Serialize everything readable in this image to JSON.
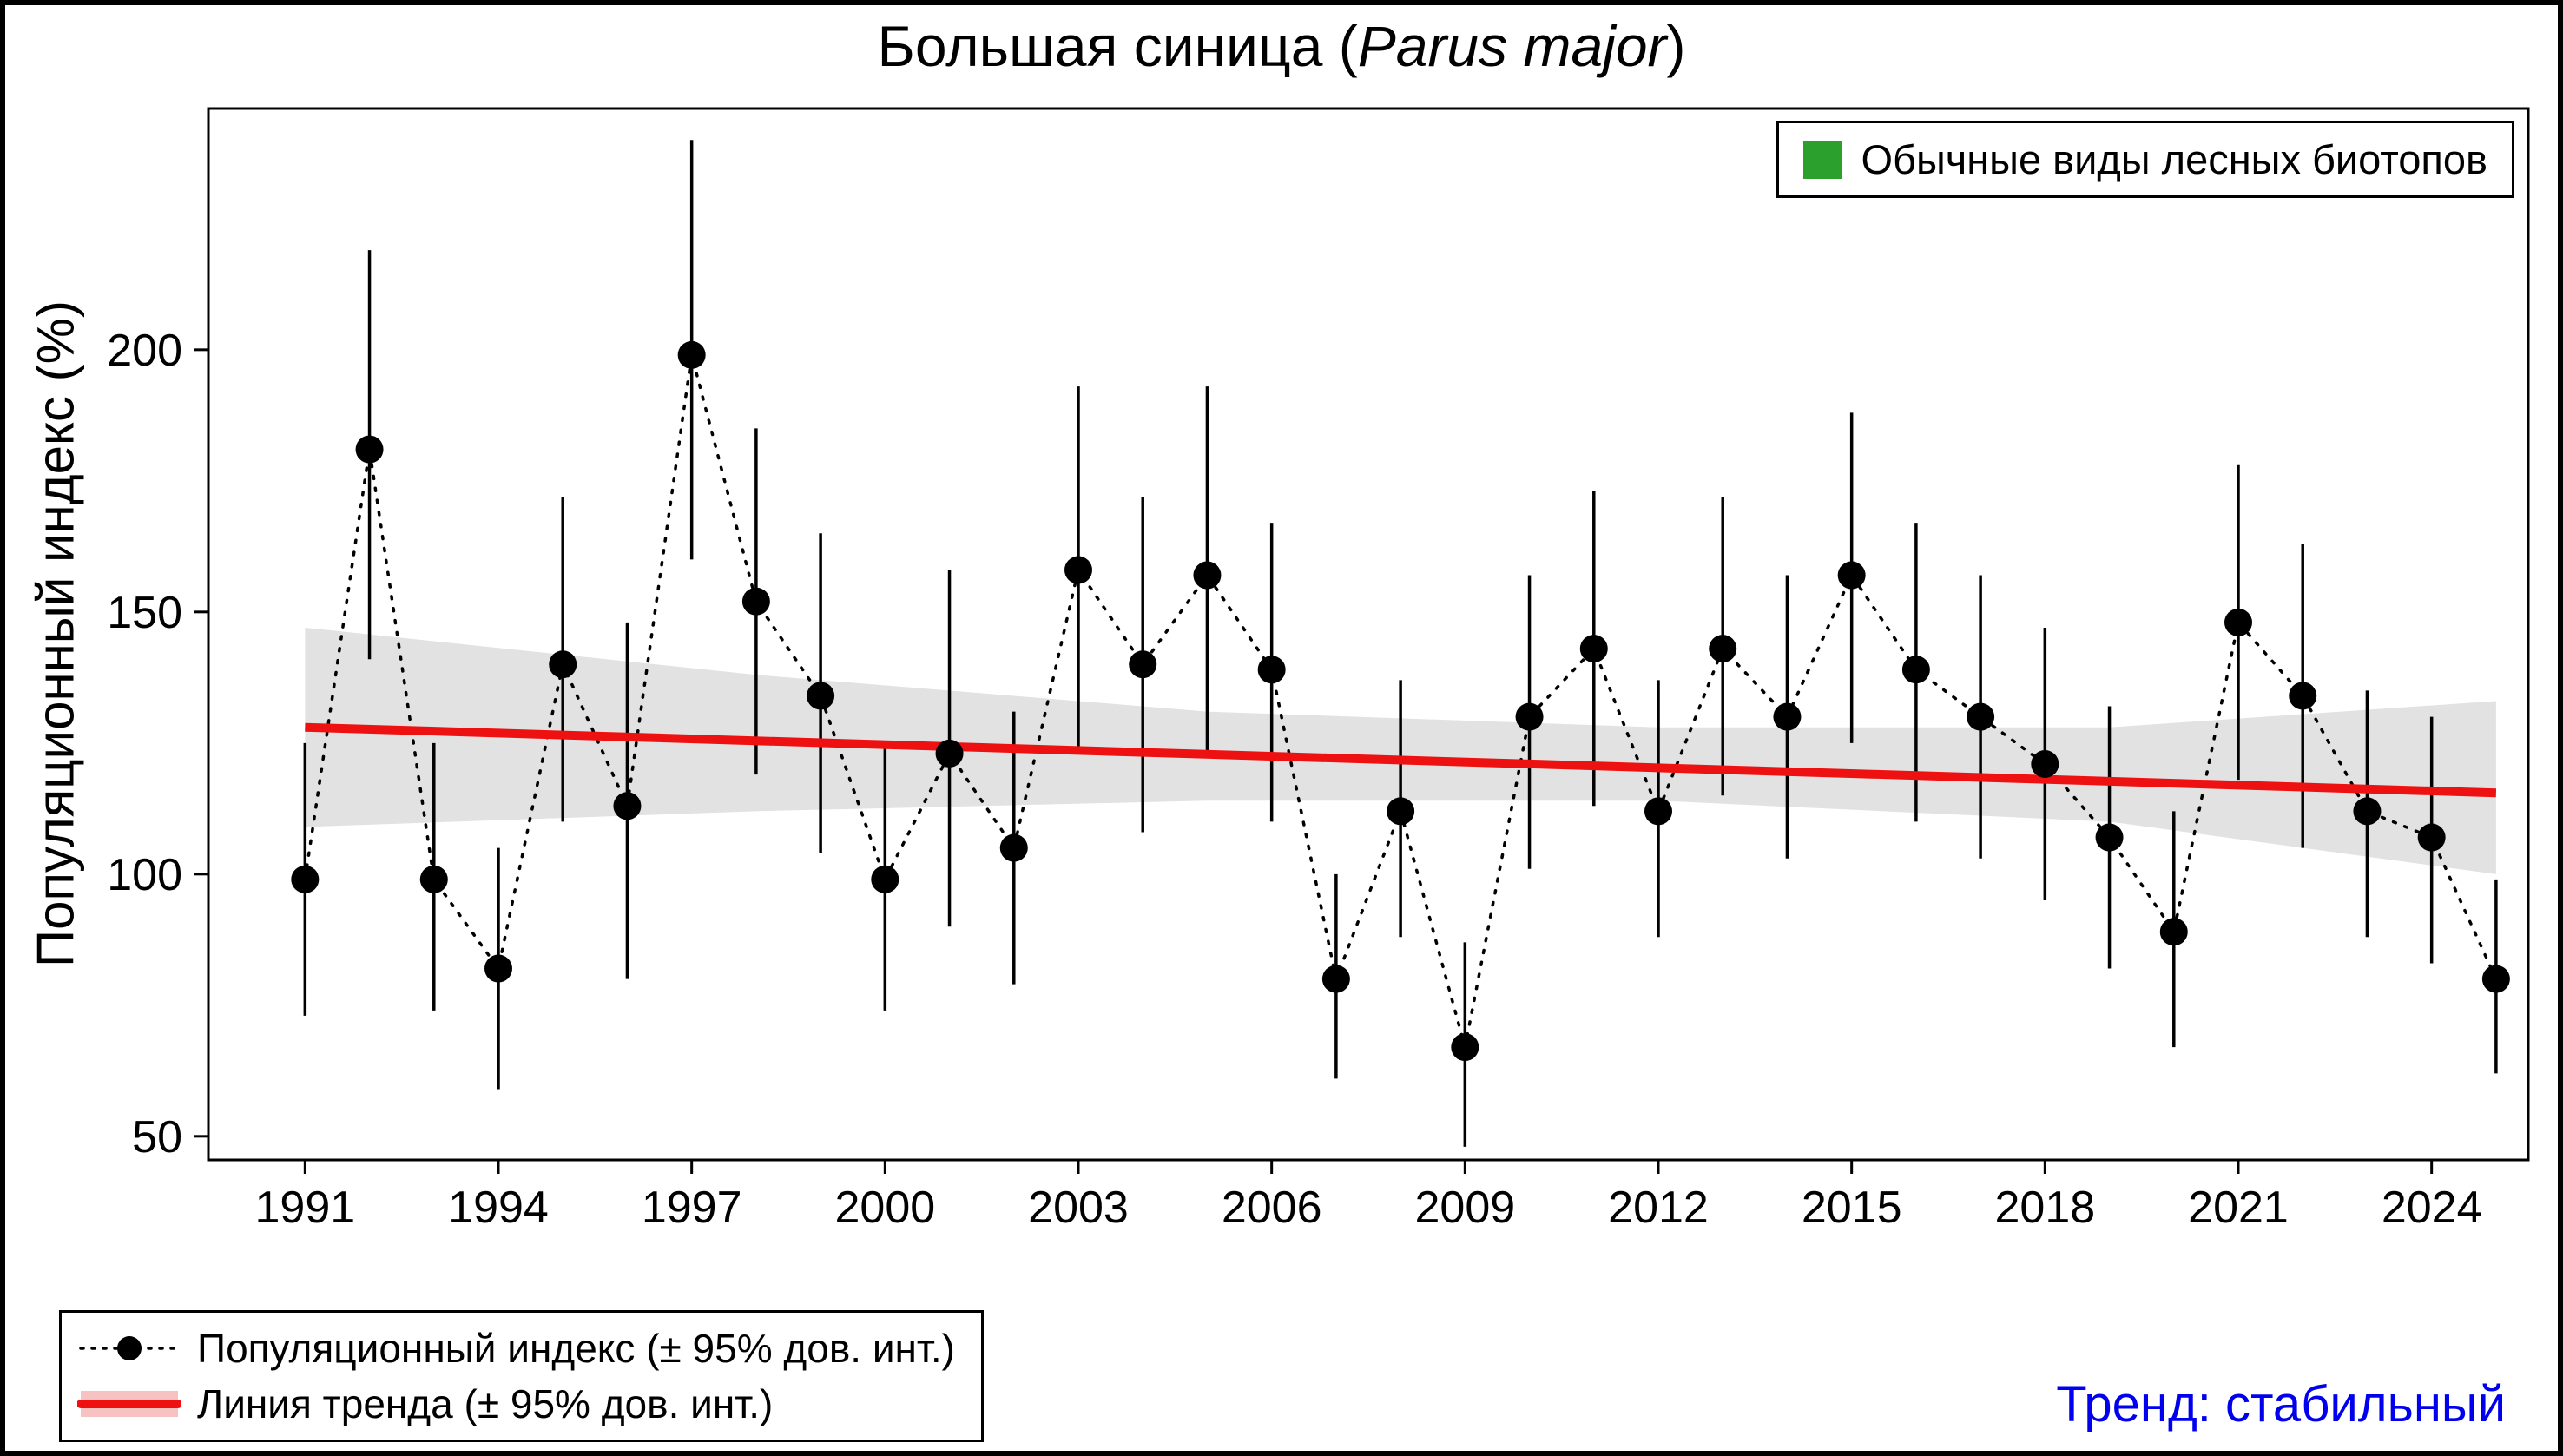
{
  "title": {
    "prefix": "Большая синица (",
    "species": "Parus major",
    "suffix": ")"
  },
  "top_legend": {
    "label": "Обычные виды лесных биотопов",
    "color": "#2CA02C"
  },
  "bottom_legend": {
    "items": [
      {
        "label": "Популяционный индекс (± 95% дов. инт.)"
      },
      {
        "label": "Линия тренда (± 95% дов. инт.)"
      }
    ]
  },
  "trend_note": {
    "label": "Тренд: стабильный",
    "color": "#0000EE"
  },
  "chart_data": {
    "type": "scatter",
    "title": "Большая синица (Parus major)",
    "xlabel": "",
    "ylabel": "Популяционный индекс (%)",
    "grid": false,
    "legend_position": "top-right",
    "x_range": [
      1989.5,
      2025.5
    ],
    "y_range": [
      45.5,
      246
    ],
    "x_ticks": [
      1991,
      1994,
      1997,
      2000,
      2003,
      2006,
      2009,
      2012,
      2015,
      2018,
      2021,
      2024
    ],
    "y_ticks": [
      50,
      100,
      150,
      200
    ],
    "years": [
      1991,
      1992,
      1993,
      1994,
      1995,
      1996,
      1997,
      1998,
      1999,
      2000,
      2001,
      2002,
      2003,
      2004,
      2005,
      2006,
      2007,
      2008,
      2009,
      2010,
      2011,
      2012,
      2013,
      2014,
      2015,
      2016,
      2017,
      2018,
      2019,
      2020,
      2021,
      2022,
      2023,
      2024,
      2025
    ],
    "index": [
      99,
      181,
      99,
      82,
      140,
      113,
      199,
      152,
      134,
      99,
      123,
      105,
      158,
      140,
      157,
      139,
      80,
      112,
      67,
      130,
      143,
      112,
      143,
      130,
      157,
      139,
      130,
      121,
      107,
      89,
      148,
      134,
      112,
      107,
      80
    ],
    "ci_low": [
      73,
      141,
      74,
      59,
      110,
      80,
      160,
      119,
      104,
      74,
      90,
      79,
      124,
      108,
      123,
      110,
      61,
      88,
      48,
      101,
      113,
      88,
      115,
      103,
      125,
      110,
      103,
      95,
      82,
      67,
      118,
      105,
      88,
      83,
      62
    ],
    "ci_high": [
      125,
      219,
      125,
      105,
      172,
      148,
      240,
      185,
      165,
      125,
      158,
      131,
      193,
      172,
      193,
      167,
      100,
      137,
      87,
      157,
      173,
      137,
      172,
      157,
      188,
      167,
      157,
      147,
      132,
      112,
      178,
      163,
      135,
      130,
      99
    ],
    "trend": {
      "x": [
        1991,
        2025
      ],
      "y": [
        128,
        115.5
      ]
    },
    "trend_band": {
      "x": [
        1991,
        1998,
        2005,
        2012,
        2019,
        2025
      ],
      "upper": [
        147,
        138,
        131,
        128,
        128,
        133
      ],
      "lower": [
        109,
        112,
        114,
        114,
        110,
        100
      ]
    },
    "colors": {
      "point": "#000000",
      "trend": "#EE1111",
      "band": "#E2E2E2",
      "key_band": "#F6C2C2"
    }
  }
}
